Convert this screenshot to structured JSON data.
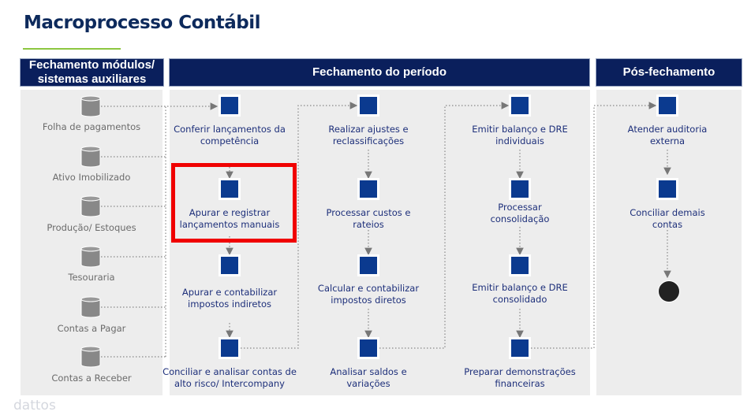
{
  "title": "Macroprocesso Contábil",
  "accent_color": "#8cc63f",
  "header_color": "#0a1f5c",
  "step_color": "#0b3a8f",
  "highlight_color": "#f00000",
  "headers": {
    "left": "Fechamento módulos/ sistemas auxiliares",
    "middle": "Fechamento do período",
    "right": "Pós-fechamento"
  },
  "sources": [
    "Folha de pagamentos",
    "Ativo Imobilizado",
    "Produção/ Estoques",
    "Tesouraria",
    "Contas a Pagar",
    "Contas a Receber"
  ],
  "columns": [
    [
      "Conferir lançamentos da competência",
      "Apurar e registrar lançamentos manuais",
      "Apurar e contabilizar impostos indiretos",
      "Conciliar e analisar contas de alto risco/ Intercompany"
    ],
    [
      "Realizar ajustes e reclassificações",
      "Processar custos e rateios",
      "Calcular e contabilizar impostos diretos",
      "Analisar saldos e variações"
    ],
    [
      "Emitir balanço e DRE individuais",
      "Processar consolidação",
      "Emitir balanço e DRE consolidado",
      "Preparar demonstrações financeiras"
    ],
    [
      "Atender auditoria externa",
      "Conciliar demais contas"
    ]
  ],
  "highlighted_step": "Apurar e registrar lançamentos manuais",
  "logo": "dattos"
}
